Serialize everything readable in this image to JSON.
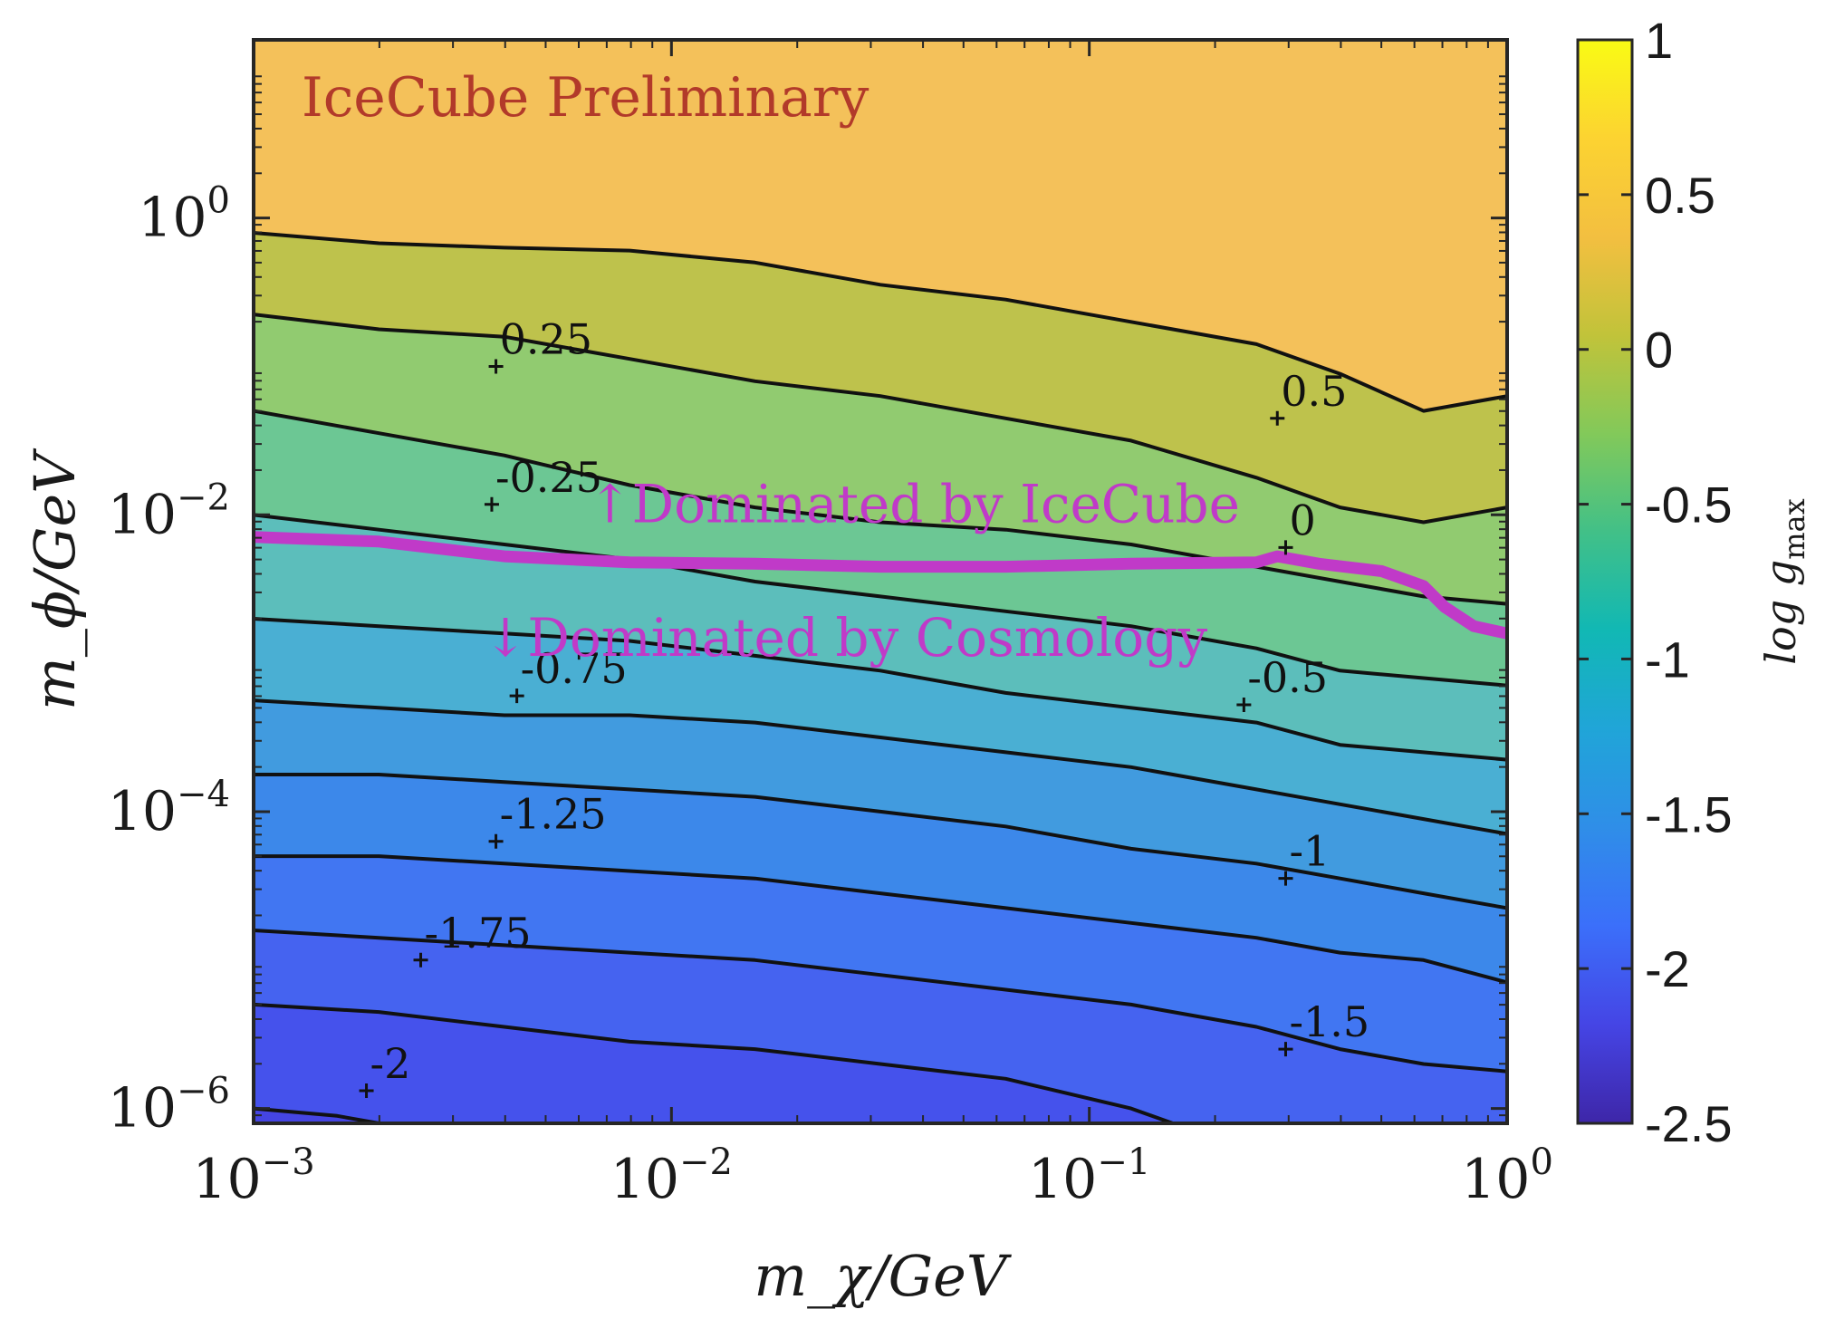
{
  "chart_data": {
    "type": "contour",
    "title": "",
    "annotation": "IceCube Preliminary",
    "annotation_color": "#b23a2a",
    "xlabel": "m_χ/GeV",
    "ylabel": "m_ϕ/GeV",
    "x_scale": "log",
    "y_scale": "log",
    "xlim_log10": [
      -3,
      0
    ],
    "ylim_log10": [
      -6.1,
      1.2
    ],
    "x_ticks": [
      {
        "exp": -3,
        "base": "10",
        "sup": "−3"
      },
      {
        "exp": -2,
        "base": "10",
        "sup": "−2"
      },
      {
        "exp": -1,
        "base": "10",
        "sup": "−1"
      },
      {
        "exp": 0,
        "base": "10",
        "sup": "0"
      }
    ],
    "y_ticks": [
      {
        "exp": -6,
        "base": "10",
        "sup": "−6"
      },
      {
        "exp": -4,
        "base": "10",
        "sup": "−4"
      },
      {
        "exp": -2,
        "base": "10",
        "sup": "−2"
      },
      {
        "exp": 0,
        "base": "10",
        "sup": "0"
      }
    ],
    "colorbar": {
      "label": "log g",
      "label_sub": "max",
      "min": -2.5,
      "max": 1,
      "ticks": [
        {
          "v": 1,
          "t": "1"
        },
        {
          "v": 0.5,
          "t": "0.5"
        },
        {
          "v": 0,
          "t": "0"
        },
        {
          "v": -0.5,
          "t": "-0.5"
        },
        {
          "v": -1,
          "t": "-1"
        },
        {
          "v": -1.5,
          "t": "-1.5"
        },
        {
          "v": -2,
          "t": "-2"
        },
        {
          "v": -2.5,
          "t": "-2.5"
        }
      ],
      "colors": [
        "#3e26a8",
        "#4545e5",
        "#3b6ffa",
        "#2f8ee8",
        "#20a5d8",
        "#11b8b4",
        "#41c088",
        "#82c95a",
        "#c1c33a",
        "#f3bf40",
        "#fcd331",
        "#f9fb14"
      ]
    },
    "band_colors": {
      "-2.25": "#4545e2",
      "-2": "#4552ec",
      "-1.75": "#4563f0",
      "-1.5": "#4176f2",
      "-1.25": "#3c88ea",
      "-1": "#419bdf",
      "-0.75": "#4aafd3",
      "-0.5": "#5cbebb",
      "-0.25": "#6cc794",
      "0": "#91cb70",
      "0.25": "#bec24c",
      "0.5": "#dcb94c",
      "0.75": "#f4c15a"
    },
    "contours": [
      {
        "level": 0.5,
        "points": [
          [
            -3,
            -0.1
          ],
          [
            -2.7,
            -0.17
          ],
          [
            -2.4,
            -0.2
          ],
          [
            -2.1,
            -0.22
          ],
          [
            -1.8,
            -0.3
          ],
          [
            -1.5,
            -0.45
          ],
          [
            -1.2,
            -0.55
          ],
          [
            -0.9,
            -0.7
          ],
          [
            -0.6,
            -0.85
          ],
          [
            -0.4,
            -1.05
          ],
          [
            -0.2,
            -1.3
          ],
          [
            0,
            -1.2
          ]
        ]
      },
      {
        "level": 0.25,
        "points": [
          [
            -3,
            -0.65
          ],
          [
            -2.7,
            -0.75
          ],
          [
            -2.4,
            -0.8
          ],
          [
            -2.1,
            -0.95
          ],
          [
            -1.8,
            -1.1
          ],
          [
            -1.5,
            -1.2
          ],
          [
            -1.2,
            -1.35
          ],
          [
            -0.9,
            -1.5
          ],
          [
            -0.6,
            -1.75
          ],
          [
            -0.4,
            -1.95
          ],
          [
            -0.2,
            -2.05
          ],
          [
            0,
            -1.95
          ]
        ]
      },
      {
        "level": 0,
        "points": [
          [
            -3,
            -1.3
          ],
          [
            -2.7,
            -1.45
          ],
          [
            -2.4,
            -1.6
          ],
          [
            -2.1,
            -1.8
          ],
          [
            -1.8,
            -1.95
          ],
          [
            -1.5,
            -2.05
          ],
          [
            -1.2,
            -2.1
          ],
          [
            -0.9,
            -2.2
          ],
          [
            -0.6,
            -2.35
          ],
          [
            -0.4,
            -2.45
          ],
          [
            -0.2,
            -2.55
          ],
          [
            0,
            -2.6
          ]
        ]
      },
      {
        "level": -0.25,
        "points": [
          [
            -3,
            -2.0
          ],
          [
            -2.7,
            -2.1
          ],
          [
            -2.4,
            -2.2
          ],
          [
            -2.1,
            -2.3
          ],
          [
            -1.8,
            -2.45
          ],
          [
            -1.5,
            -2.55
          ],
          [
            -1.2,
            -2.65
          ],
          [
            -0.9,
            -2.75
          ],
          [
            -0.6,
            -2.9
          ],
          [
            -0.4,
            -3.05
          ],
          [
            -0.2,
            -3.1
          ],
          [
            0,
            -3.15
          ]
        ]
      },
      {
        "level": -0.5,
        "points": [
          [
            -3,
            -2.7
          ],
          [
            -2.7,
            -2.75
          ],
          [
            -2.4,
            -2.8
          ],
          [
            -2.1,
            -2.85
          ],
          [
            -1.8,
            -2.95
          ],
          [
            -1.5,
            -3.05
          ],
          [
            -1.2,
            -3.2
          ],
          [
            -0.9,
            -3.3
          ],
          [
            -0.6,
            -3.4
          ],
          [
            -0.4,
            -3.55
          ],
          [
            -0.2,
            -3.6
          ],
          [
            0,
            -3.65
          ]
        ]
      },
      {
        "level": -0.75,
        "points": [
          [
            -3,
            -3.25
          ],
          [
            -2.7,
            -3.3
          ],
          [
            -2.4,
            -3.35
          ],
          [
            -2.1,
            -3.35
          ],
          [
            -1.8,
            -3.4
          ],
          [
            -1.5,
            -3.5
          ],
          [
            -1.2,
            -3.6
          ],
          [
            -0.9,
            -3.7
          ],
          [
            -0.6,
            -3.85
          ],
          [
            -0.4,
            -3.95
          ],
          [
            -0.2,
            -4.05
          ],
          [
            0,
            -4.15
          ]
        ]
      },
      {
        "level": -1,
        "points": [
          [
            -3,
            -3.75
          ],
          [
            -2.7,
            -3.75
          ],
          [
            -2.4,
            -3.8
          ],
          [
            -2.1,
            -3.85
          ],
          [
            -1.8,
            -3.9
          ],
          [
            -1.5,
            -4.0
          ],
          [
            -1.2,
            -4.1
          ],
          [
            -0.9,
            -4.25
          ],
          [
            -0.6,
            -4.35
          ],
          [
            -0.4,
            -4.45
          ],
          [
            -0.2,
            -4.55
          ],
          [
            0,
            -4.65
          ]
        ]
      },
      {
        "level": -1.25,
        "points": [
          [
            -3,
            -4.3
          ],
          [
            -2.7,
            -4.3
          ],
          [
            -2.4,
            -4.35
          ],
          [
            -2.1,
            -4.4
          ],
          [
            -1.8,
            -4.45
          ],
          [
            -1.5,
            -4.55
          ],
          [
            -1.2,
            -4.65
          ],
          [
            -0.9,
            -4.75
          ],
          [
            -0.6,
            -4.85
          ],
          [
            -0.4,
            -4.95
          ],
          [
            -0.2,
            -5.0
          ],
          [
            0,
            -5.15
          ]
        ]
      },
      {
        "level": -1.5,
        "points": [
          [
            -3,
            -4.8
          ],
          [
            -2.7,
            -4.85
          ],
          [
            -2.4,
            -4.9
          ],
          [
            -2.1,
            -4.95
          ],
          [
            -1.8,
            -5.0
          ],
          [
            -1.5,
            -5.1
          ],
          [
            -1.2,
            -5.2
          ],
          [
            -0.9,
            -5.3
          ],
          [
            -0.6,
            -5.45
          ],
          [
            -0.4,
            -5.6
          ],
          [
            -0.2,
            -5.7
          ],
          [
            0,
            -5.75
          ]
        ]
      },
      {
        "level": -1.75,
        "points": [
          [
            -3,
            -5.3
          ],
          [
            -2.7,
            -5.35
          ],
          [
            -2.4,
            -5.45
          ],
          [
            -2.1,
            -5.55
          ],
          [
            -1.8,
            -5.6
          ],
          [
            -1.5,
            -5.7
          ],
          [
            -1.2,
            -5.8
          ],
          [
            -0.9,
            -6.0
          ],
          [
            -0.8,
            -6.1
          ]
        ]
      },
      {
        "level": -2,
        "points": [
          [
            -3,
            -6.0
          ],
          [
            -2.8,
            -6.05
          ],
          [
            -2.7,
            -6.1
          ]
        ]
      }
    ],
    "contour_labels": [
      {
        "text": "0.25",
        "x": -2.42,
        "y": -1.0
      },
      {
        "text": "0.5",
        "x": -0.55,
        "y": -1.35
      },
      {
        "text": "-0.25",
        "x": -2.43,
        "y": -1.93
      },
      {
        "text": "0",
        "x": -0.53,
        "y": -2.22
      },
      {
        "text": "-0.75",
        "x": -2.37,
        "y": -3.22
      },
      {
        "text": "-0.5",
        "x": -0.63,
        "y": -3.28
      },
      {
        "text": "-1.25",
        "x": -2.42,
        "y": -4.2
      },
      {
        "text": "-1",
        "x": -0.53,
        "y": -4.45
      },
      {
        "text": "-1.75",
        "x": -2.6,
        "y": -5.0
      },
      {
        "text": "-1.5",
        "x": -0.53,
        "y": -5.6
      },
      {
        "text": "-2",
        "x": -2.73,
        "y": -5.88
      }
    ],
    "boundary_line": {
      "color": "#c03ac8",
      "points": [
        [
          -3,
          -2.15
        ],
        [
          -2.7,
          -2.18
        ],
        [
          -2.4,
          -2.28
        ],
        [
          -2.1,
          -2.32
        ],
        [
          -1.8,
          -2.33
        ],
        [
          -1.5,
          -2.35
        ],
        [
          -1.2,
          -2.35
        ],
        [
          -0.9,
          -2.33
        ],
        [
          -0.6,
          -2.32
        ],
        [
          -0.55,
          -2.28
        ],
        [
          -0.45,
          -2.33
        ],
        [
          -0.3,
          -2.38
        ],
        [
          -0.2,
          -2.48
        ],
        [
          -0.15,
          -2.62
        ],
        [
          -0.08,
          -2.75
        ],
        [
          0,
          -2.8
        ]
      ]
    },
    "region_labels": [
      {
        "text": "↑Dominated by IceCube",
        "x": -2.2,
        "y": -2.05
      },
      {
        "text": "↓Dominated by Cosmology",
        "x": -2.45,
        "y": -2.95
      }
    ]
  }
}
